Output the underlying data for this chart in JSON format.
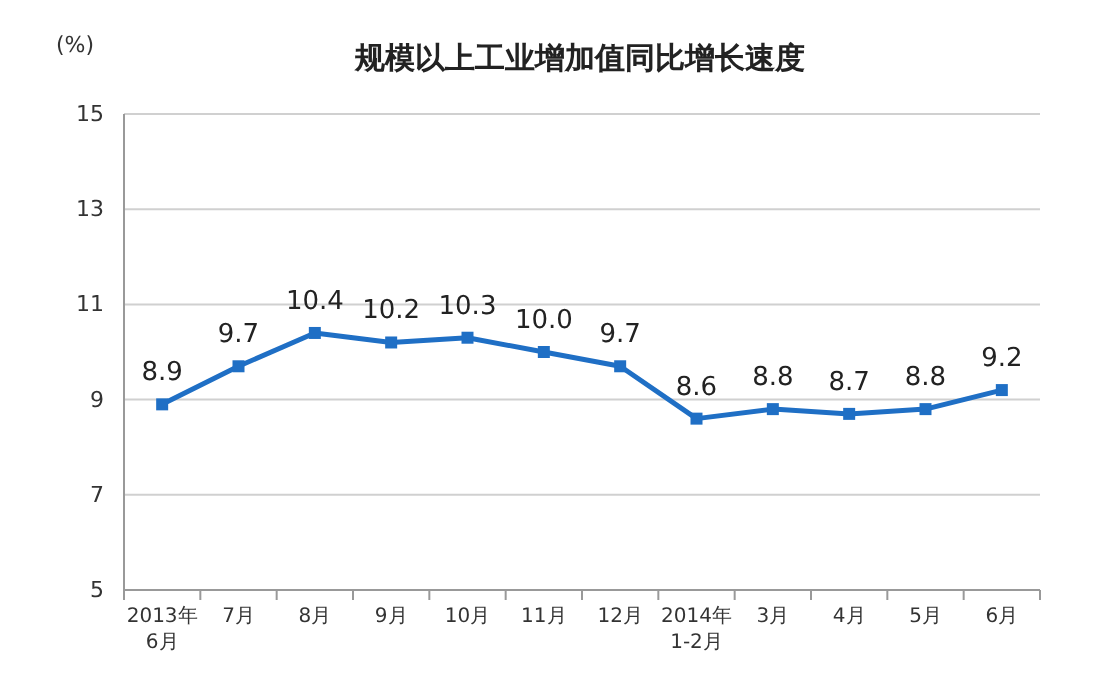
{
  "chart_data": {
    "type": "line",
    "title": "规模以上工业增加值同比增长速度",
    "ylabel": "(%)",
    "categories": [
      "2013年\n6月",
      "7月",
      "8月",
      "9月",
      "10月",
      "11月",
      "12月",
      "2014年\n1-2月",
      "3月",
      "4月",
      "5月",
      "6月"
    ],
    "series": [
      {
        "color": "#1f6fc5",
        "values": [
          8.9,
          9.7,
          10.4,
          10.2,
          10.3,
          10.0,
          9.7,
          8.6,
          8.8,
          8.7,
          8.8,
          9.2
        ],
        "value_labels": [
          "8.9",
          "9.7",
          "10.4",
          "10.2",
          "10.3",
          "10.0",
          "9.7",
          "8.6",
          "8.8",
          "8.7",
          "8.8",
          "9.2"
        ]
      }
    ],
    "ylim": [
      5,
      15
    ],
    "yticks": [
      5,
      7,
      9,
      11,
      13,
      15
    ],
    "grid": "y",
    "marker": "square",
    "line_style": "solid"
  }
}
